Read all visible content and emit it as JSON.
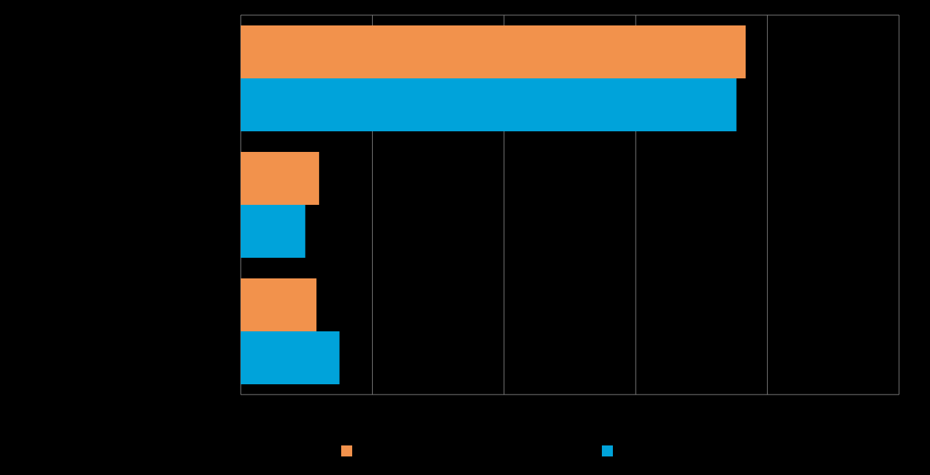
{
  "chart_data": {
    "type": "barh",
    "categories": [
      null,
      null,
      null
    ],
    "series": [
      {
        "color": "#f2924c",
        "values": [
          76.7,
          11.9,
          11.5
        ]
      },
      {
        "color": "#00a3da",
        "values": [
          75.3,
          9.8,
          15.0
        ]
      }
    ],
    "xlim": [
      0,
      100
    ],
    "xticks": [
      0,
      20,
      40,
      60,
      80,
      100
    ],
    "grid": true
  }
}
